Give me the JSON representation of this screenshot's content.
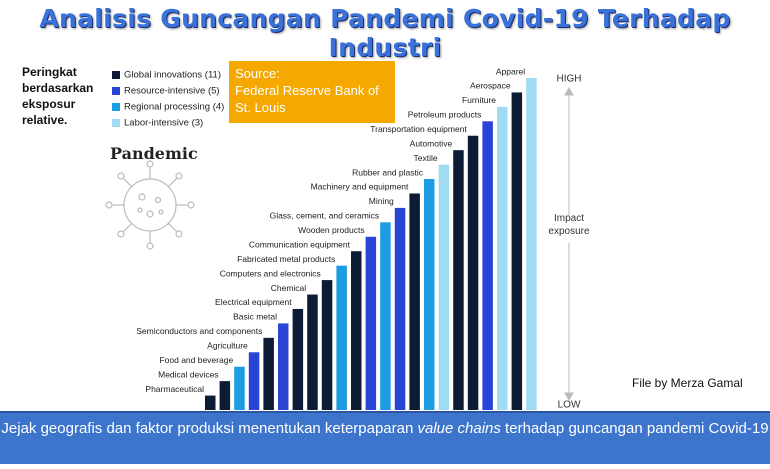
{
  "chart_data": {
    "type": "bar",
    "title": "Analisis Guncangan Pandemi Covid-19 Terhadap Industri",
    "subtitle": "Peringkat berdasarkan eksposur relative.",
    "source_title": "Source:",
    "source": "Federal Reserve Bank of St. Louis",
    "panel_label": "Pandemic",
    "high_label": "HIGH",
    "low_label": "LOW",
    "axis_label": "Impact exposure",
    "credit": "File by Merza Gamal",
    "footer": [
      "Jejak geografis dan faktor produksi menentukan keterpaparan ",
      "value chains",
      " terhadap guncangan pandemi Covid-19"
    ],
    "categories": [
      "Pharmaceutical",
      "Medical devices",
      "Food and beverage",
      "Agriculture",
      "Semiconductors and components",
      "Basic metal",
      "Electrical equipment",
      "Chemical",
      "Computers and electronics",
      "Fabricated metal products",
      "Communication equipment",
      "Wooden products",
      "Glass, cement, and ceramics",
      "Mining",
      "Machinery and equipment",
      "Rubber and plastic",
      "Textile",
      "Automotive",
      "Transportation equipment",
      "Petroleum products",
      "Furniture",
      "Aerospace",
      "Apparel"
    ],
    "series": [
      {
        "name": "Global innovations (11)",
        "color": "#0e1b35",
        "values": [
          1,
          2,
          null,
          null,
          5,
          null,
          7,
          8,
          9,
          null,
          11,
          null,
          null,
          null,
          15,
          null,
          null,
          18,
          19,
          null,
          null,
          22,
          null
        ]
      },
      {
        "name": "Resource-intensive (5)",
        "color": "#2a45d6",
        "values": [
          null,
          null,
          null,
          4,
          null,
          6,
          null,
          null,
          null,
          null,
          null,
          12,
          null,
          14,
          null,
          null,
          null,
          null,
          null,
          20,
          null,
          null,
          null
        ]
      },
      {
        "name": "Regional processing (4)",
        "color": "#1c9ce2",
        "values": [
          null,
          null,
          3,
          null,
          null,
          null,
          null,
          null,
          null,
          10,
          null,
          null,
          13,
          null,
          null,
          16,
          null,
          null,
          null,
          null,
          null,
          null,
          null
        ]
      },
      {
        "name": "Labor-intensive (3)",
        "color": "#9fdcf4",
        "values": [
          null,
          null,
          null,
          null,
          null,
          null,
          null,
          null,
          null,
          null,
          null,
          null,
          null,
          null,
          null,
          null,
          17,
          null,
          null,
          null,
          21,
          null,
          23
        ]
      }
    ]
  }
}
